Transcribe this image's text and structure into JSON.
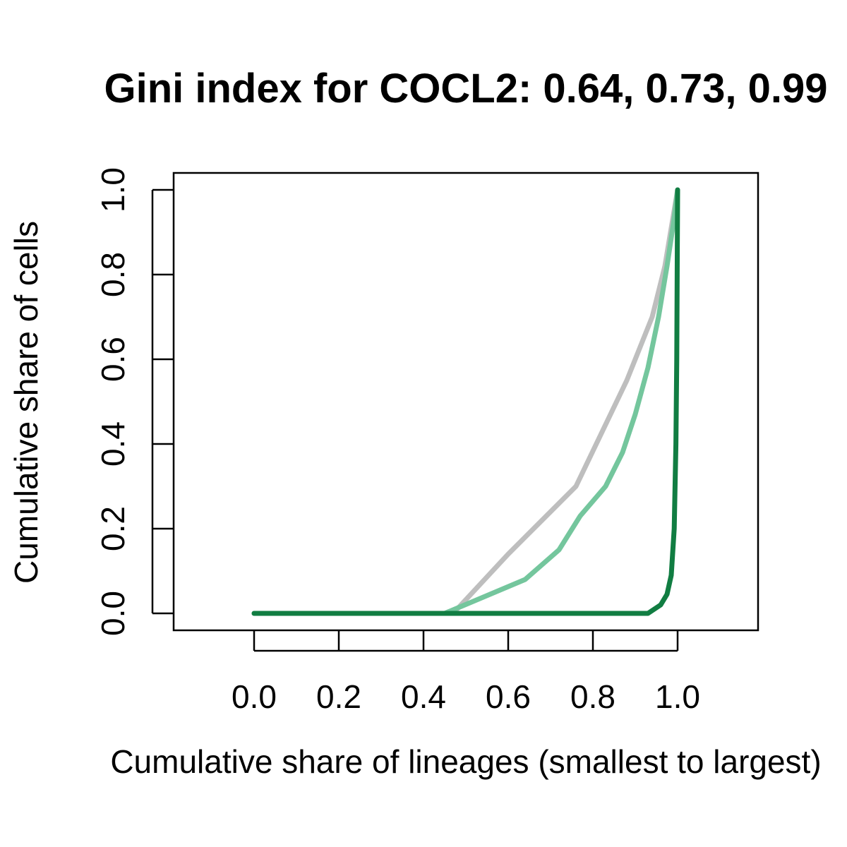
{
  "chart_data": {
    "type": "line",
    "title": "Gini index for COCL2: 0.64, 0.73, 0.99",
    "xlabel": "Cumulative share of lineages (smallest to largest)",
    "ylabel": "Cumulative share of cells",
    "xlim": [
      -0.19,
      1.19
    ],
    "ylim": [
      -0.04,
      1.04
    ],
    "x_ticks": [
      0.0,
      0.2,
      0.4,
      0.6,
      0.8,
      1.0
    ],
    "x_tick_labels": [
      "0.0",
      "0.2",
      "0.4",
      "0.6",
      "0.8",
      "1.0"
    ],
    "y_ticks": [
      0.0,
      0.2,
      0.4,
      0.6,
      0.8,
      1.0
    ],
    "y_tick_labels": [
      "0.0",
      "0.2",
      "0.4",
      "0.6",
      "0.8",
      "1.0"
    ],
    "grid": false,
    "legend": "none",
    "series": [
      {
        "color": "#bebebe",
        "points": [
          [
            0.0,
            0.0
          ],
          [
            0.47,
            0.0
          ],
          [
            0.6,
            0.14
          ],
          [
            0.76,
            0.3
          ],
          [
            0.88,
            0.55
          ],
          [
            0.94,
            0.7
          ],
          [
            0.97,
            0.82
          ],
          [
            1.0,
            1.0
          ]
        ]
      },
      {
        "color": "#74c69d",
        "points": [
          [
            0.0,
            0.0
          ],
          [
            0.45,
            0.0
          ],
          [
            0.64,
            0.08
          ],
          [
            0.72,
            0.15
          ],
          [
            0.77,
            0.23
          ],
          [
            0.83,
            0.3
          ],
          [
            0.87,
            0.38
          ],
          [
            0.9,
            0.47
          ],
          [
            0.93,
            0.58
          ],
          [
            0.955,
            0.7
          ],
          [
            0.975,
            0.82
          ],
          [
            0.99,
            0.92
          ],
          [
            1.0,
            1.0
          ]
        ]
      },
      {
        "color": "#117d42",
        "points": [
          [
            0.0,
            0.0
          ],
          [
            0.93,
            0.0
          ],
          [
            0.96,
            0.02
          ],
          [
            0.975,
            0.045
          ],
          [
            0.985,
            0.09
          ],
          [
            0.992,
            0.2
          ],
          [
            0.996,
            0.4
          ],
          [
            0.998,
            0.6
          ],
          [
            0.999,
            0.8
          ],
          [
            1.0,
            1.0
          ]
        ]
      }
    ]
  }
}
